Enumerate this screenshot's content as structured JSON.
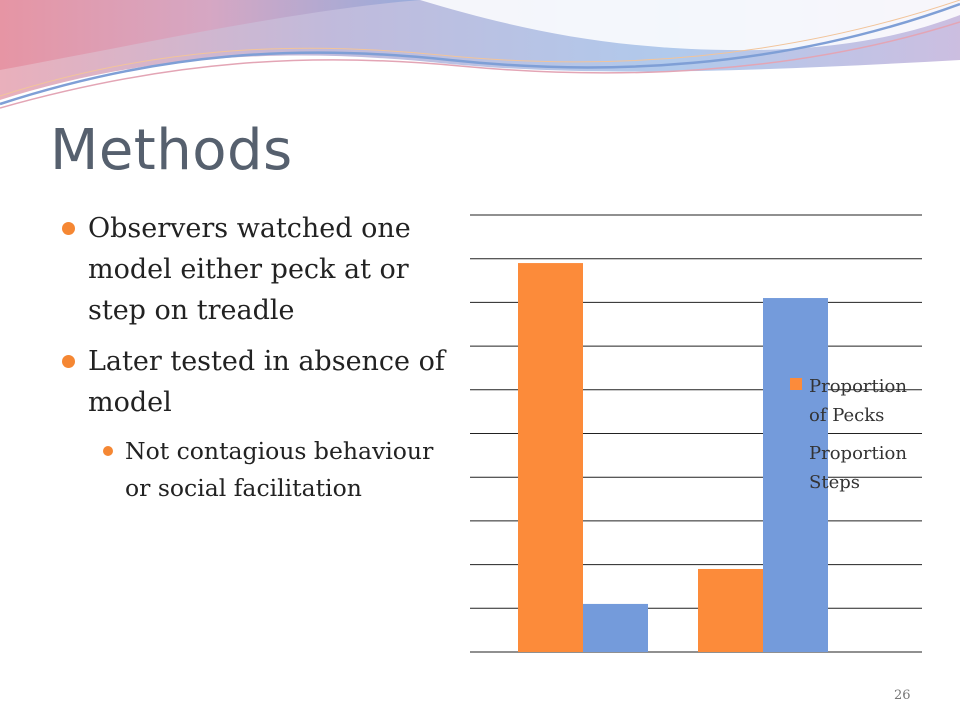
{
  "slide": {
    "title": "Methods",
    "page_number": "26"
  },
  "bullets": [
    {
      "text": "Observers watched one model either peck at or step on treadle"
    },
    {
      "text": "Later tested in absence of model"
    }
  ],
  "sub_bullets": [
    {
      "text": "Not contagious behaviour or social facilitation"
    }
  ],
  "colors": {
    "accent": "#f58733",
    "pecks": "#fc8b3a",
    "steps": "#749bdb",
    "title": "#56606e"
  },
  "chart_data": {
    "type": "bar",
    "categories": [
      "",
      ""
    ],
    "ylim": [
      0,
      1
    ],
    "grid": true,
    "legend_position": "right",
    "series": [
      {
        "name": "Proportion of Pecks",
        "legend_lines": [
          "Proportion",
          "of Pecks"
        ],
        "color": "#fc8b3a",
        "values": [
          0.89,
          0.19
        ]
      },
      {
        "name": "Proportion Steps",
        "legend_lines": [
          "Proportion",
          "Steps"
        ],
        "color": "#749bdb",
        "values": [
          0.11,
          0.81
        ]
      }
    ]
  }
}
